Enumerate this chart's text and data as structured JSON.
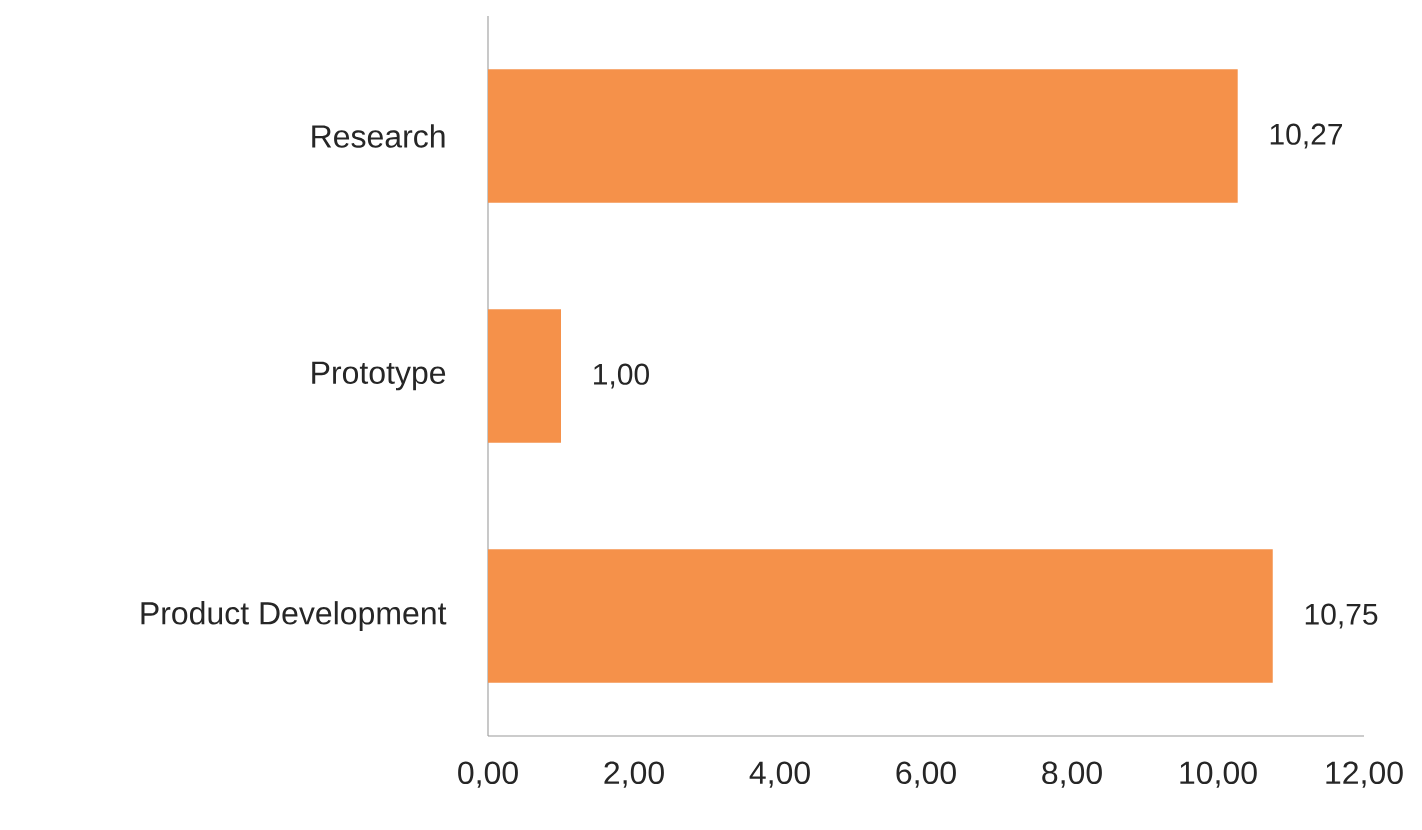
{
  "chart_data": {
    "type": "bar",
    "orientation": "horizontal",
    "categories": [
      "Research",
      "Prototype",
      "Product Development"
    ],
    "values": [
      10.27,
      1.0,
      10.75
    ],
    "value_labels": [
      "10,27",
      "1,00",
      "10,75"
    ],
    "color": "#f5914a",
    "xlim": [
      0,
      12
    ],
    "xticks": [
      {
        "value": 0,
        "label": "0,00"
      },
      {
        "value": 2,
        "label": "2,00"
      },
      {
        "value": 4,
        "label": "4,00"
      },
      {
        "value": 6,
        "label": "6,00"
      },
      {
        "value": 8,
        "label": "8,00"
      },
      {
        "value": 10,
        "label": "10,00"
      },
      {
        "value": 12,
        "label": "12,00"
      }
    ],
    "grid": false
  }
}
